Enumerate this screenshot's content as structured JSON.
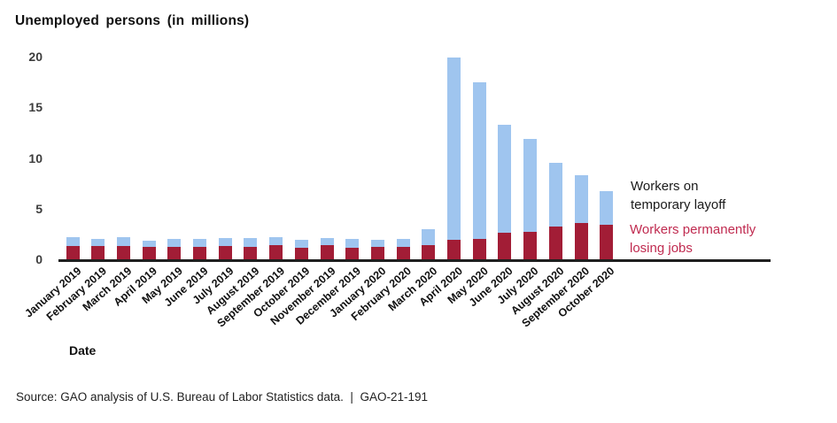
{
  "title": "Unemployed persons (in millions)",
  "x_axis_title": "Date",
  "source_note": "Source: GAO analysis of U.S. Bureau of Labor Statistics data.  |  GAO-21-191",
  "legend": {
    "temporary": {
      "line1": "Workers on",
      "line2": "temporary layoff",
      "color": "#1a1a1a"
    },
    "permanent": {
      "line1": "Workers permanently",
      "line2": "losing jobs",
      "color": "#c02b50"
    }
  },
  "colors": {
    "temporary_layoff_bar": "#9fc5ef",
    "permanent_losing_bar": "#a21d36",
    "axis_line": "#1f1f1f"
  },
  "chart_data": {
    "type": "bar",
    "stacked": true,
    "title": "Unemployed persons (in millions)",
    "xlabel": "Date",
    "ylabel": "Unemployed persons (in millions)",
    "ylim": [
      0,
      20
    ],
    "yticks": [
      0,
      5,
      10,
      15,
      20
    ],
    "grid": false,
    "legend_position": "right",
    "categories": [
      "January 2019",
      "February 2019",
      "March 2019",
      "April 2019",
      "May 2019",
      "June 2019",
      "July 2019",
      "August 2019",
      "September 2019",
      "October 2019",
      "November 2019",
      "December 2019",
      "January 2020",
      "February 2020",
      "March 2020",
      "April 2020",
      "May 2020",
      "June 2020",
      "July 2020",
      "August 2020",
      "September 2020",
      "October 2020"
    ],
    "series": [
      {
        "name": "Workers permanently losing jobs",
        "color": "#a21d36",
        "values": [
          1.3,
          1.3,
          1.3,
          1.2,
          1.2,
          1.2,
          1.3,
          1.2,
          1.4,
          1.1,
          1.4,
          1.1,
          1.2,
          1.2,
          1.4,
          1.9,
          2.0,
          2.6,
          2.7,
          3.2,
          3.6,
          3.4
        ]
      },
      {
        "name": "Workers on temporary layoff",
        "color": "#9fc5ef",
        "values": [
          0.9,
          0.7,
          0.9,
          0.6,
          0.8,
          0.8,
          0.8,
          0.9,
          0.8,
          0.8,
          0.7,
          0.9,
          0.7,
          0.8,
          1.6,
          18.0,
          15.5,
          10.7,
          9.2,
          6.3,
          4.7,
          3.3
        ]
      }
    ]
  }
}
